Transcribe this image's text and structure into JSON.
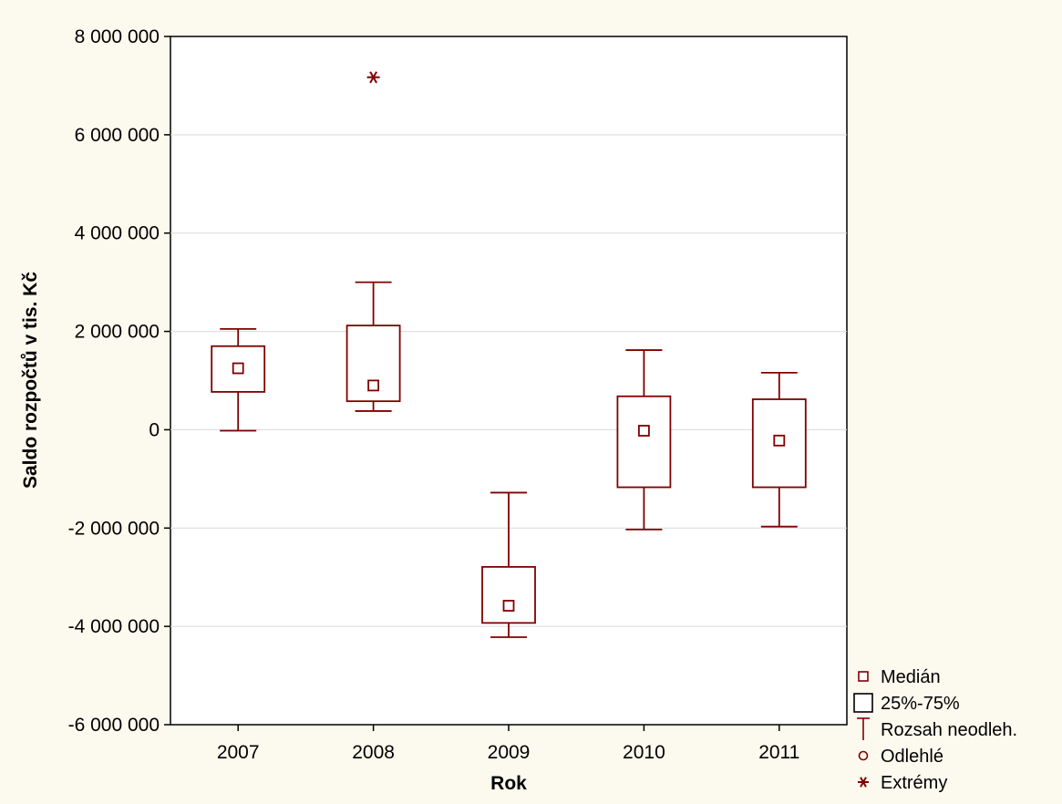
{
  "chart_data": {
    "type": "boxplot",
    "title": "",
    "xlabel": "Rok",
    "ylabel": "Saldo rozpočtů v tis. Kč",
    "ylim": [
      -6000000,
      8000000
    ],
    "y_ticks": [
      -6000000,
      -4000000,
      -2000000,
      0,
      2000000,
      4000000,
      6000000,
      8000000
    ],
    "y_tick_labels": [
      "-6 000 000",
      "-4 000 000",
      "-2 000 000",
      "0",
      "2 000 000",
      "4 000 000",
      "6 000 000",
      "8 000 000"
    ],
    "categories": [
      "2007",
      "2008",
      "2009",
      "2010",
      "2011"
    ],
    "boxes": [
      {
        "category": "2007",
        "median": 1250000,
        "q1": 770000,
        "q3": 1700000,
        "whisker_low": -20000,
        "whisker_high": 2050000,
        "outliers": [],
        "extremes": []
      },
      {
        "category": "2008",
        "median": 900000,
        "q1": 580000,
        "q3": 2120000,
        "whisker_low": 380000,
        "whisker_high": 3000000,
        "outliers": [],
        "extremes": [
          7170000
        ]
      },
      {
        "category": "2009",
        "median": -3580000,
        "q1": -3930000,
        "q3": -2790000,
        "whisker_low": -4220000,
        "whisker_high": -1280000,
        "outliers": [],
        "extremes": []
      },
      {
        "category": "2010",
        "median": -20000,
        "q1": -1170000,
        "q3": 680000,
        "whisker_low": -2030000,
        "whisker_high": 1620000,
        "outliers": [],
        "extremes": []
      },
      {
        "category": "2011",
        "median": -220000,
        "q1": -1170000,
        "q3": 620000,
        "whisker_low": -1970000,
        "whisker_high": 1160000,
        "outliers": [],
        "extremes": []
      }
    ],
    "grid": true,
    "legend_position": "bottom-right",
    "legend": [
      {
        "key": "median",
        "label": "Medián"
      },
      {
        "key": "box",
        "label": "25%-75%"
      },
      {
        "key": "whisker",
        "label": "Rozsah neodleh."
      },
      {
        "key": "outlier",
        "label": "Odlehlé"
      },
      {
        "key": "extreme",
        "label": "Extrémy"
      }
    ],
    "colors": {
      "series": "#800000",
      "background": "#fcf9ee",
      "plot_background": "#ffffff",
      "grid": "#d9d9d9",
      "axis": "#000000"
    }
  }
}
